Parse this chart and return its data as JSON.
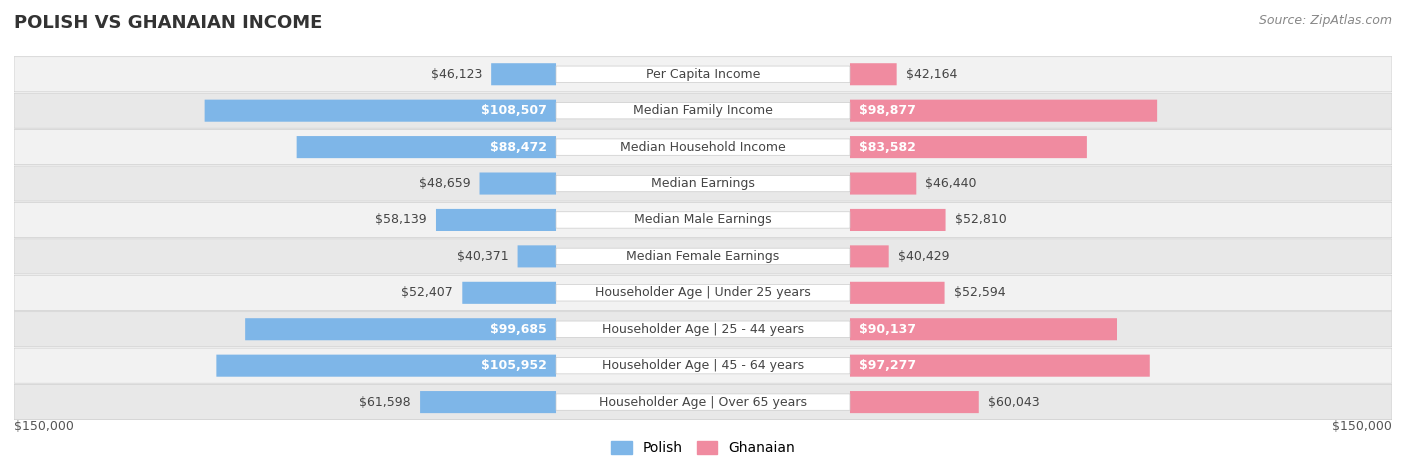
{
  "title": "POLISH VS GHANAIAN INCOME",
  "source": "Source: ZipAtlas.com",
  "categories": [
    "Per Capita Income",
    "Median Family Income",
    "Median Household Income",
    "Median Earnings",
    "Median Male Earnings",
    "Median Female Earnings",
    "Householder Age | Under 25 years",
    "Householder Age | 25 - 44 years",
    "Householder Age | 45 - 64 years",
    "Householder Age | Over 65 years"
  ],
  "polish_values": [
    46123,
    108507,
    88472,
    48659,
    58139,
    40371,
    52407,
    99685,
    105952,
    61598
  ],
  "ghanaian_values": [
    42164,
    98877,
    83582,
    46440,
    52810,
    40429,
    52594,
    90137,
    97277,
    60043
  ],
  "polish_labels": [
    "$46,123",
    "$108,507",
    "$88,472",
    "$48,659",
    "$58,139",
    "$40,371",
    "$52,407",
    "$99,685",
    "$105,952",
    "$61,598"
  ],
  "ghanaian_labels": [
    "$42,164",
    "$98,877",
    "$83,582",
    "$46,440",
    "$52,810",
    "$40,429",
    "$52,594",
    "$90,137",
    "$97,277",
    "$60,043"
  ],
  "polish_color": "#7EB6E8",
  "ghanaian_color": "#F08BA0",
  "polish_color_dark": "#5B9BD5",
  "ghanaian_color_dark": "#E8697F",
  "max_value": 150000,
  "row_bg_light": "#F5F5F5",
  "row_bg_dark": "#EBEBEB",
  "label_fontsize": 9,
  "title_fontsize": 13,
  "source_fontsize": 9
}
